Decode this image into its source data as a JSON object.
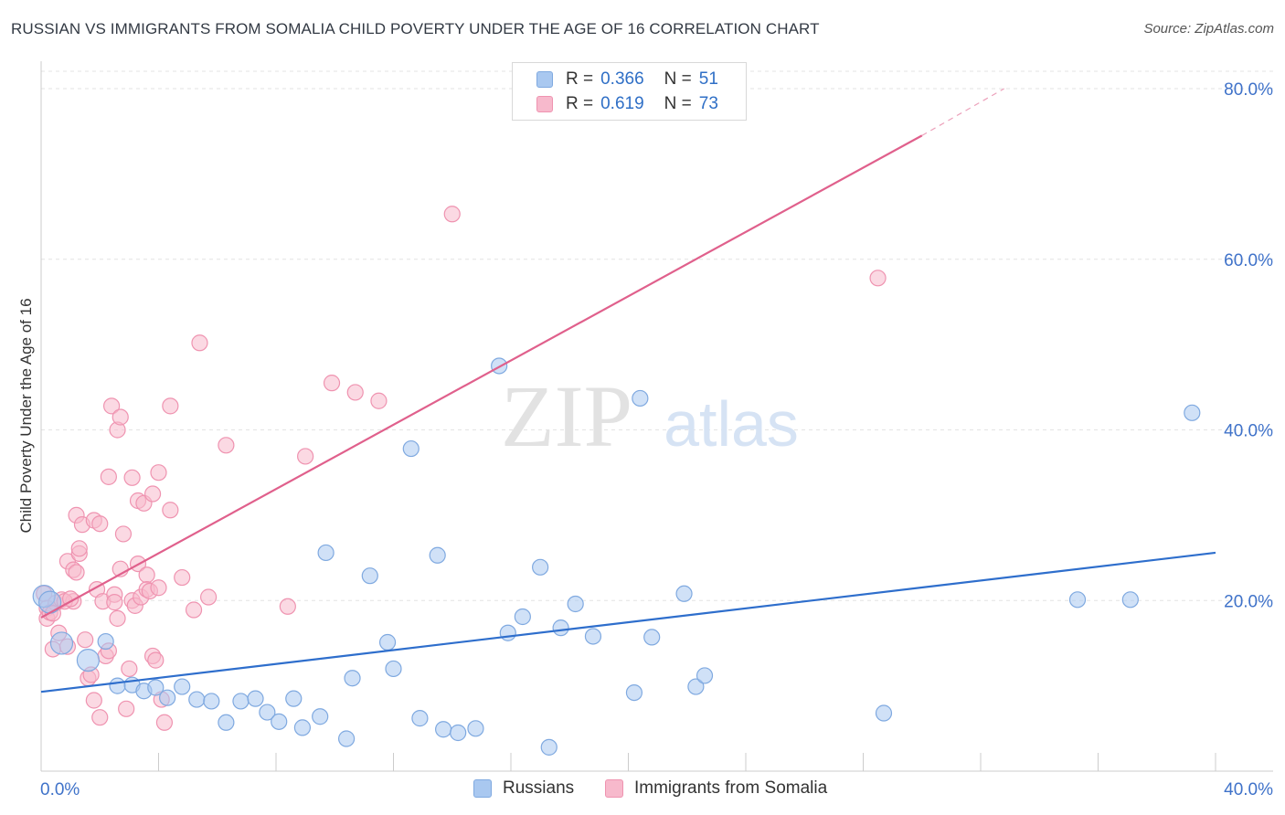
{
  "header": {
    "title": "RUSSIAN VS IMMIGRANTS FROM SOMALIA CHILD POVERTY UNDER THE AGE OF 16 CORRELATION CHART",
    "source": "Source: ZipAtlas.com"
  },
  "watermark": {
    "zip": "ZIP",
    "atlas": "atlas"
  },
  "legend": {
    "r_label": "R =",
    "n_label": "N =",
    "items": [
      {
        "name": "Russians",
        "r": "0.366",
        "n": "51"
      },
      {
        "name": "Immigrants from Somalia",
        "r": "0.619",
        "n": "73"
      }
    ]
  },
  "chart_data": {
    "type": "scatter",
    "title": "RUSSIAN VS IMMIGRANTS FROM SOMALIA CHILD POVERTY UNDER THE AGE OF 16 CORRELATION CHART",
    "xlabel": "",
    "ylabel": "Child Poverty Under the Age of 16",
    "xlim": [
      0,
      40
    ],
    "ylim": [
      0,
      85
    ],
    "x_tick_labels": [
      "0.0%",
      "40.0%"
    ],
    "y_ticks": [
      20,
      40,
      60,
      80
    ],
    "y_tick_labels": [
      "20.0%",
      "40.0%",
      "60.0%",
      "80.0%"
    ],
    "grid": true,
    "colors": {
      "russians_fill": "#a9c8f0",
      "russians_stroke": "#7fa9e0",
      "russians_line": "#2e6ecc",
      "somalia_fill": "#f7b9cc",
      "somalia_stroke": "#ef93b0",
      "somalia_line": "#e0608c",
      "axis_text": "#3f72c9"
    },
    "series": [
      {
        "name": "Russians",
        "trend": {
          "x0": 0,
          "y0": 9.3,
          "x1": 40,
          "y1": 25.6
        },
        "points": [
          [
            0.1,
            20.5
          ],
          [
            0.3,
            19.8
          ],
          [
            0.7,
            15.0
          ],
          [
            1.6,
            13.0
          ],
          [
            2.2,
            15.2
          ],
          [
            2.6,
            10.0
          ],
          [
            3.1,
            10.1
          ],
          [
            3.5,
            9.4
          ],
          [
            3.9,
            9.8
          ],
          [
            4.3,
            8.6
          ],
          [
            4.8,
            9.9
          ],
          [
            5.3,
            8.4
          ],
          [
            5.8,
            8.2
          ],
          [
            6.3,
            5.7
          ],
          [
            6.8,
            8.2
          ],
          [
            7.3,
            8.5
          ],
          [
            7.7,
            6.9
          ],
          [
            8.1,
            5.8
          ],
          [
            8.6,
            8.5
          ],
          [
            8.9,
            5.1
          ],
          [
            9.5,
            6.4
          ],
          [
            9.7,
            25.6
          ],
          [
            10.4,
            3.8
          ],
          [
            10.6,
            10.9
          ],
          [
            11.2,
            22.9
          ],
          [
            11.8,
            15.1
          ],
          [
            12.0,
            12.0
          ],
          [
            12.6,
            37.8
          ],
          [
            12.9,
            6.2
          ],
          [
            13.5,
            25.3
          ],
          [
            13.7,
            4.9
          ],
          [
            14.2,
            4.5
          ],
          [
            14.8,
            5.0
          ],
          [
            15.6,
            47.5
          ],
          [
            15.9,
            16.2
          ],
          [
            16.4,
            18.1
          ],
          [
            17.0,
            23.9
          ],
          [
            17.3,
            2.8
          ],
          [
            17.7,
            16.8
          ],
          [
            18.2,
            19.6
          ],
          [
            18.8,
            15.8
          ],
          [
            20.2,
            9.2
          ],
          [
            20.4,
            43.7
          ],
          [
            20.8,
            15.7
          ],
          [
            21.9,
            20.8
          ],
          [
            22.3,
            9.9
          ],
          [
            22.6,
            11.2
          ],
          [
            28.7,
            6.8
          ],
          [
            35.3,
            20.1
          ],
          [
            37.1,
            20.1
          ],
          [
            39.2,
            42.0
          ]
        ]
      },
      {
        "name": "Immigrants from Somalia",
        "trend": {
          "x0": 0,
          "y0": 18.0,
          "x1": 30.0,
          "y1": 74.5,
          "dash_to_x": 32.8,
          "dash_to_y": 80.0
        },
        "points": [
          [
            0.1,
            20.8
          ],
          [
            0.2,
            19.1
          ],
          [
            0.2,
            17.9
          ],
          [
            0.3,
            18.6
          ],
          [
            0.4,
            14.3
          ],
          [
            0.5,
            19.7
          ],
          [
            0.6,
            16.2
          ],
          [
            0.7,
            20.1
          ],
          [
            0.9,
            24.6
          ],
          [
            0.9,
            14.6
          ],
          [
            1.1,
            19.9
          ],
          [
            1.1,
            23.6
          ],
          [
            1.2,
            30.0
          ],
          [
            1.2,
            23.3
          ],
          [
            1.3,
            25.5
          ],
          [
            1.3,
            26.1
          ],
          [
            1.4,
            28.9
          ],
          [
            1.5,
            15.4
          ],
          [
            1.6,
            10.9
          ],
          [
            1.7,
            11.3
          ],
          [
            1.8,
            29.4
          ],
          [
            1.8,
            8.3
          ],
          [
            1.9,
            21.3
          ],
          [
            2.0,
            6.3
          ],
          [
            2.0,
            29.0
          ],
          [
            2.1,
            19.9
          ],
          [
            2.2,
            13.5
          ],
          [
            2.3,
            14.1
          ],
          [
            2.3,
            34.5
          ],
          [
            2.4,
            42.8
          ],
          [
            2.5,
            20.7
          ],
          [
            2.5,
            19.8
          ],
          [
            2.6,
            17.9
          ],
          [
            2.6,
            40.0
          ],
          [
            2.7,
            23.7
          ],
          [
            2.7,
            41.5
          ],
          [
            2.8,
            27.8
          ],
          [
            2.9,
            7.3
          ],
          [
            3.0,
            12.0
          ],
          [
            3.1,
            20.0
          ],
          [
            3.1,
            34.4
          ],
          [
            3.2,
            19.4
          ],
          [
            3.3,
            31.7
          ],
          [
            3.3,
            24.3
          ],
          [
            3.4,
            20.4
          ],
          [
            3.5,
            31.4
          ],
          [
            3.6,
            23.0
          ],
          [
            3.6,
            21.3
          ],
          [
            3.7,
            21.1
          ],
          [
            3.8,
            32.5
          ],
          [
            3.8,
            13.5
          ],
          [
            3.9,
            13.0
          ],
          [
            4.0,
            21.5
          ],
          [
            4.0,
            35.0
          ],
          [
            4.1,
            8.4
          ],
          [
            4.2,
            5.7
          ],
          [
            4.4,
            30.6
          ],
          [
            4.4,
            42.8
          ],
          [
            4.8,
            22.7
          ],
          [
            5.2,
            18.9
          ],
          [
            5.4,
            50.2
          ],
          [
            5.7,
            20.4
          ],
          [
            6.3,
            38.2
          ],
          [
            8.4,
            19.3
          ],
          [
            9.0,
            36.9
          ],
          [
            9.9,
            45.5
          ],
          [
            10.7,
            44.4
          ],
          [
            11.5,
            43.4
          ],
          [
            14.0,
            65.3
          ],
          [
            28.5,
            57.8
          ],
          [
            0.4,
            18.5
          ],
          [
            0.8,
            19.9
          ],
          [
            1.0,
            20.2
          ]
        ]
      }
    ]
  }
}
